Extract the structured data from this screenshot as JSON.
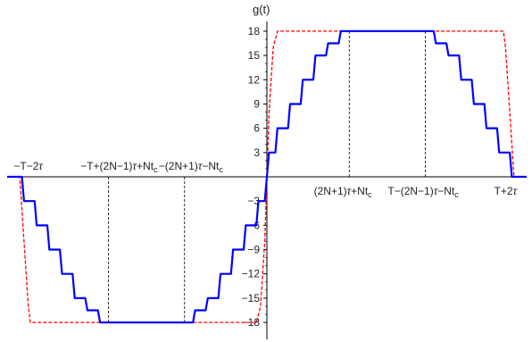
{
  "chart_data": {
    "type": "line",
    "title": "",
    "ylabel": "g(t)",
    "xlabel": "",
    "xlim": [
      -12.3,
      12.3
    ],
    "ylim": [
      -19.5,
      19.5
    ],
    "grid": false,
    "legend": "none",
    "y_ticks": [
      {
        "value": 18,
        "label": "18"
      },
      {
        "value": 15,
        "label": "15"
      },
      {
        "value": 12,
        "label": "12"
      },
      {
        "value": 9,
        "label": "9"
      },
      {
        "value": 6,
        "label": "6"
      },
      {
        "value": 3,
        "label": "3"
      },
      {
        "value": -3,
        "label": "−3"
      },
      {
        "value": -6,
        "label": "−6"
      },
      {
        "value": -9,
        "label": "−9"
      },
      {
        "value": -12,
        "label": "−12"
      },
      {
        "value": -15,
        "label": "−15"
      },
      {
        "value": -18,
        "label": "−18"
      }
    ],
    "x_annotations": [
      {
        "x": -11.3,
        "side": "above",
        "parts": [
          {
            "t": "−T−2"
          },
          {
            "t": "τ",
            "i": true
          }
        ]
      },
      {
        "x": -7.0,
        "side": "above",
        "parts": [
          {
            "t": "−T+(2N−1)"
          },
          {
            "t": "τ",
            "i": true
          },
          {
            "t": "+Nt"
          },
          {
            "t": "c",
            "sub": true
          }
        ]
      },
      {
        "x": -3.6,
        "side": "above",
        "parts": [
          {
            "t": "−(2N+1)"
          },
          {
            "t": "τ",
            "i": true
          },
          {
            "t": "−Nt"
          },
          {
            "t": "c",
            "sub": true
          }
        ]
      },
      {
        "x": 3.6,
        "side": "below",
        "parts": [
          {
            "t": "(2N+1)"
          },
          {
            "t": "τ",
            "i": true
          },
          {
            "t": "+Nt"
          },
          {
            "t": "c",
            "sub": true
          }
        ]
      },
      {
        "x": 7.4,
        "side": "below",
        "parts": [
          {
            "t": "T−(2N−1)"
          },
          {
            "t": "τ",
            "i": true
          },
          {
            "t": "−Nt"
          },
          {
            "t": "c",
            "sub": true
          }
        ]
      },
      {
        "x": 11.3,
        "side": "below",
        "parts": [
          {
            "t": "T+2"
          },
          {
            "t": "τ",
            "i": true
          }
        ]
      }
    ],
    "reference_lines": [
      {
        "x": -7.5,
        "from": 0,
        "to": -18
      },
      {
        "x": -3.9,
        "from": 0,
        "to": -18
      },
      {
        "x": 3.9,
        "from": 0,
        "to": 18
      },
      {
        "x": 7.5,
        "from": 0,
        "to": 18
      }
    ],
    "series": [
      {
        "color": "#0000ff",
        "style": "solid",
        "x": [
          -12.3,
          -11.6,
          -11.5,
          -11.2,
          -11.0,
          -10.9,
          -10.6,
          -10.4,
          -10.3,
          -10.0,
          -9.8,
          -9.7,
          -9.4,
          -9.2,
          -9.1,
          -8.8,
          -8.6,
          -8.5,
          -8.2,
          -8.0,
          -7.9,
          -7.7,
          -7.5,
          -3.9,
          -3.7,
          -3.5,
          -3.4,
          -3.1,
          -2.9,
          -2.8,
          -2.5,
          -2.3,
          -2.2,
          -1.9,
          -1.7,
          -1.6,
          -1.3,
          -1.1,
          -1.0,
          -0.7,
          -0.5,
          -0.4,
          -0.1,
          0.1,
          0.4,
          0.5,
          0.7,
          1.0,
          1.1,
          1.3,
          1.6,
          1.7,
          1.9,
          2.2,
          2.3,
          2.5,
          2.8,
          2.9,
          3.1,
          3.4,
          3.5,
          3.7,
          3.9,
          7.5,
          7.7,
          7.9,
          8.0,
          8.2,
          8.5,
          8.6,
          8.8,
          9.1,
          9.2,
          9.4,
          9.7,
          9.8,
          10.0,
          10.3,
          10.4,
          10.6,
          10.9,
          11.0,
          11.2,
          11.5,
          11.6,
          12.3
        ],
        "y": [
          0,
          0,
          -3,
          -3,
          -3,
          -6,
          -6,
          -6,
          -9,
          -9,
          -9,
          -12,
          -12,
          -12,
          -15,
          -15,
          -15,
          -16.5,
          -16.5,
          -16.5,
          -18,
          -18,
          -18,
          -18,
          -18,
          -18,
          -16.5,
          -16.5,
          -16.5,
          -15,
          -15,
          -15,
          -12,
          -12,
          -12,
          -9,
          -9,
          -9,
          -6,
          -6,
          -6,
          -3,
          -3,
          3,
          3,
          6,
          6,
          6,
          9,
          9,
          9,
          12,
          12,
          12,
          15,
          15,
          15,
          16.5,
          16.5,
          16.5,
          18,
          18,
          18,
          18,
          18,
          18,
          16.5,
          16.5,
          16.5,
          15,
          15,
          15,
          12,
          12,
          12,
          9,
          9,
          9,
          6,
          6,
          6,
          3,
          3,
          3,
          0,
          0
        ]
      },
      {
        "color": "#ff0000",
        "style": "dashed",
        "x": [
          -12.3,
          -11.7,
          -11.5,
          -11.3,
          -11.2,
          -0.5,
          -0.3,
          -0.1,
          0,
          0.1,
          0.3,
          0.5,
          11.2,
          11.3,
          11.5,
          11.7,
          12.3
        ],
        "y": [
          0,
          0,
          -8,
          -16,
          -18,
          -18,
          -16,
          -8,
          0,
          8,
          16,
          18,
          18,
          16,
          8,
          0,
          0
        ]
      }
    ]
  }
}
